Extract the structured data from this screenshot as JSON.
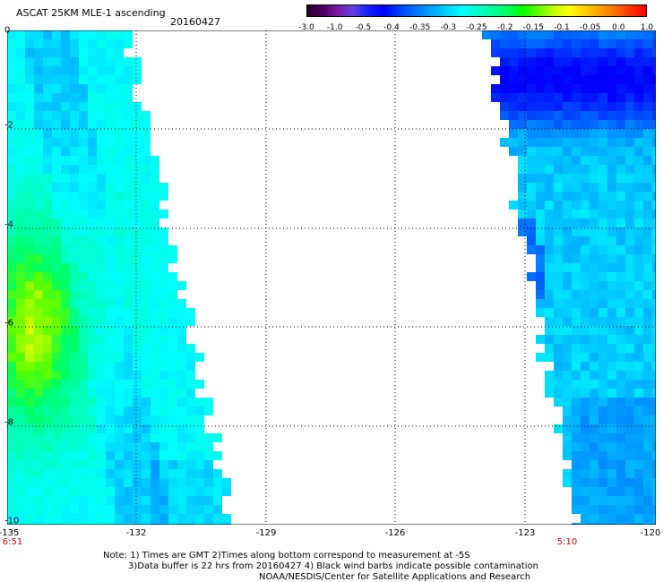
{
  "header": {
    "title": "ASCAT 25KM MLE-1 ascending",
    "date": "20160427"
  },
  "colorbar": {
    "labels": [
      "-3.0",
      "-1.0",
      "-0.5",
      "-0.4",
      "-0.35",
      "-0.3",
      "-0.25",
      "-0.2",
      "-0.15",
      "-0.1",
      "-0.05",
      "0.0",
      "1.0"
    ],
    "colors": [
      "#2a002a",
      "#7a1ca8",
      "#4a36e8",
      "#0000ff",
      "#0050ff",
      "#00a0ff",
      "#00ffff",
      "#00ffb0",
      "#00ff00",
      "#80ff00",
      "#ffff00",
      "#ff9000",
      "#ff0000"
    ]
  },
  "axes": {
    "x_ticks": [
      "-135",
      "-132",
      "-129",
      "-126",
      "-123",
      "-120"
    ],
    "y_ticks": [
      "0",
      "-2",
      "-4",
      "-6",
      "-8",
      "-10"
    ],
    "time_left": "6:51",
    "time_right": "5:10",
    "lon_range": [
      -135,
      -120
    ],
    "lat_range": [
      0,
      -10
    ]
  },
  "notes": {
    "line1": "Note: 1) Times are GMT 2)Times along bottom correspond to measurement at -5S",
    "line2": "3)Data buffer is 22 hrs from 20160427 4) Black wind barbs indicate possible contamination",
    "line3": "NOAA/NESDIS/Center for Satellite Applications and Research"
  },
  "swaths": {
    "left": {
      "name": "western-swath",
      "dominant_value": "-0.25 to -0.3"
    },
    "right": {
      "name": "eastern-swath",
      "dominant_value": "-0.3 to -0.4"
    }
  }
}
